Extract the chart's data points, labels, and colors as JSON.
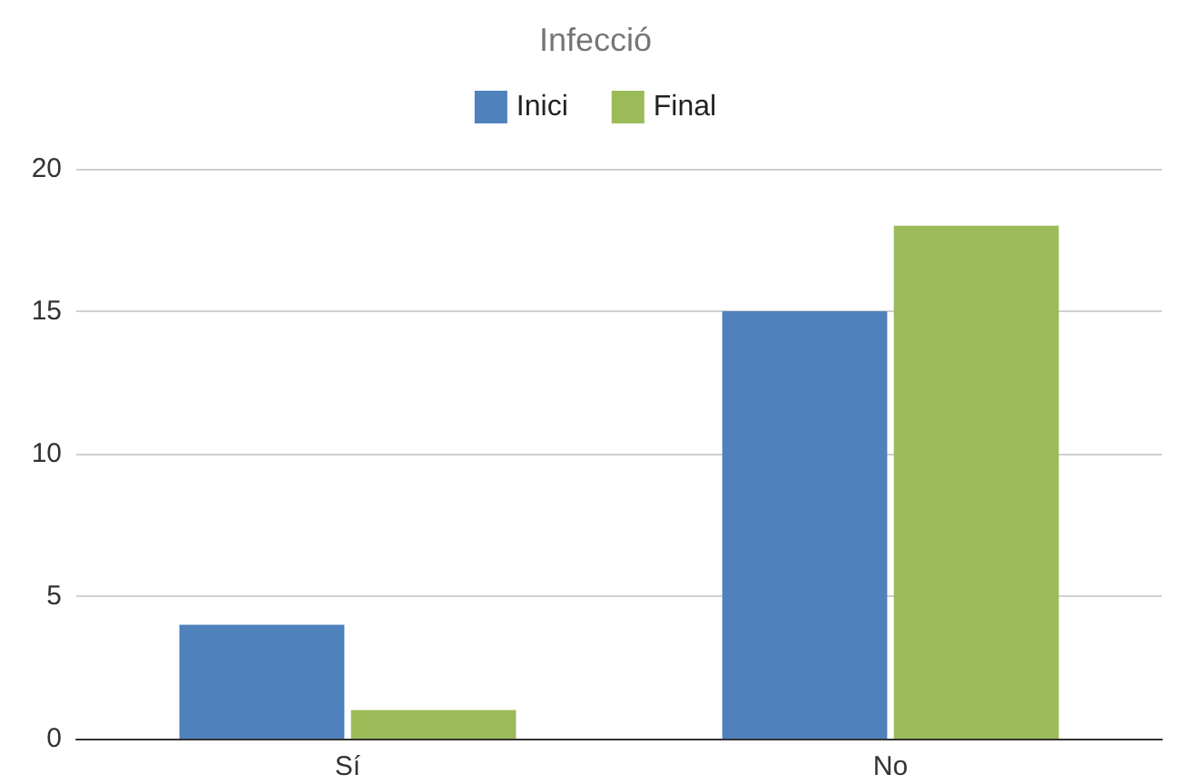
{
  "chart_data": {
    "type": "bar",
    "title": "Infecció",
    "categories": [
      "Sí",
      "No"
    ],
    "series": [
      {
        "name": "Inici",
        "color": "#4f81bd",
        "values": [
          4,
          15
        ]
      },
      {
        "name": "Final",
        "color": "#9bbb59",
        "values": [
          1,
          18
        ]
      }
    ],
    "ylim": [
      0,
      20
    ],
    "yticks": [
      0,
      5,
      10,
      15,
      20
    ],
    "grid": "y",
    "legend": "top"
  }
}
